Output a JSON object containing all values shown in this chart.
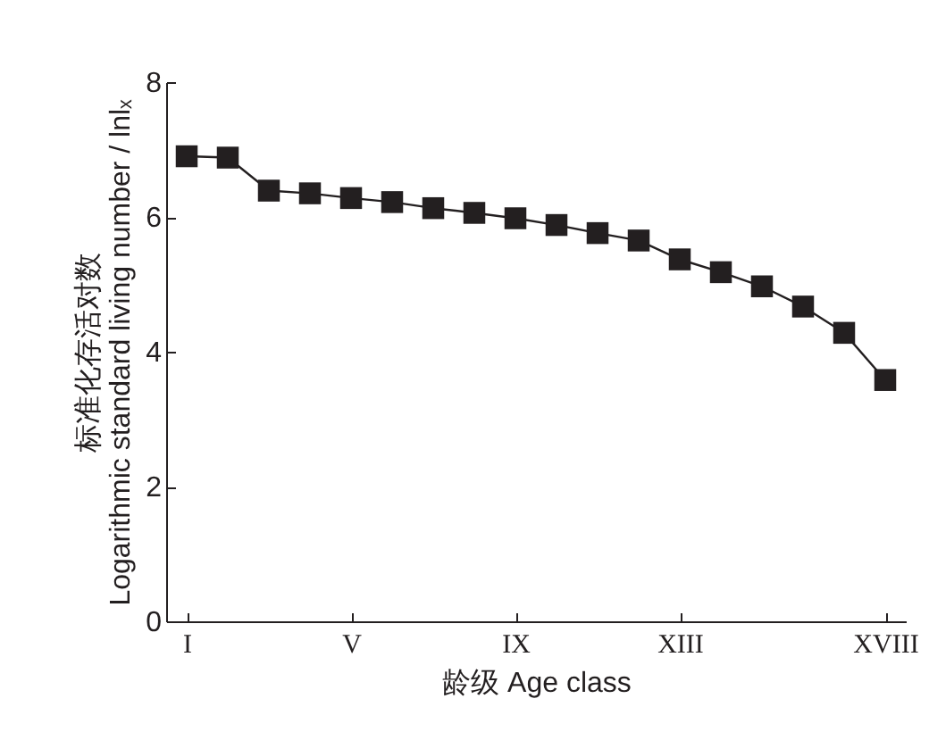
{
  "chart_data": {
    "type": "line",
    "xlabel": "龄级 Age class",
    "ylabel": "标准化存活对数\nLogarithmic standard living number / lnlₓ",
    "categories": [
      "I",
      null,
      null,
      null,
      "V",
      null,
      null,
      null,
      "IX",
      null,
      null,
      null,
      "XIII",
      null,
      null,
      null,
      null,
      "XVIII"
    ],
    "series": [
      {
        "color": "#231f20",
        "values": [
          6.9,
          6.88,
          6.39,
          6.35,
          6.28,
          6.22,
          6.13,
          6.06,
          5.98,
          5.88,
          5.76,
          5.65,
          5.37,
          5.18,
          4.97,
          4.67,
          4.28,
          3.58
        ]
      }
    ],
    "ylim": [
      0,
      8
    ],
    "yticks": [
      0,
      2,
      4,
      6,
      8
    ],
    "marker": "square",
    "line_style": "solid"
  }
}
